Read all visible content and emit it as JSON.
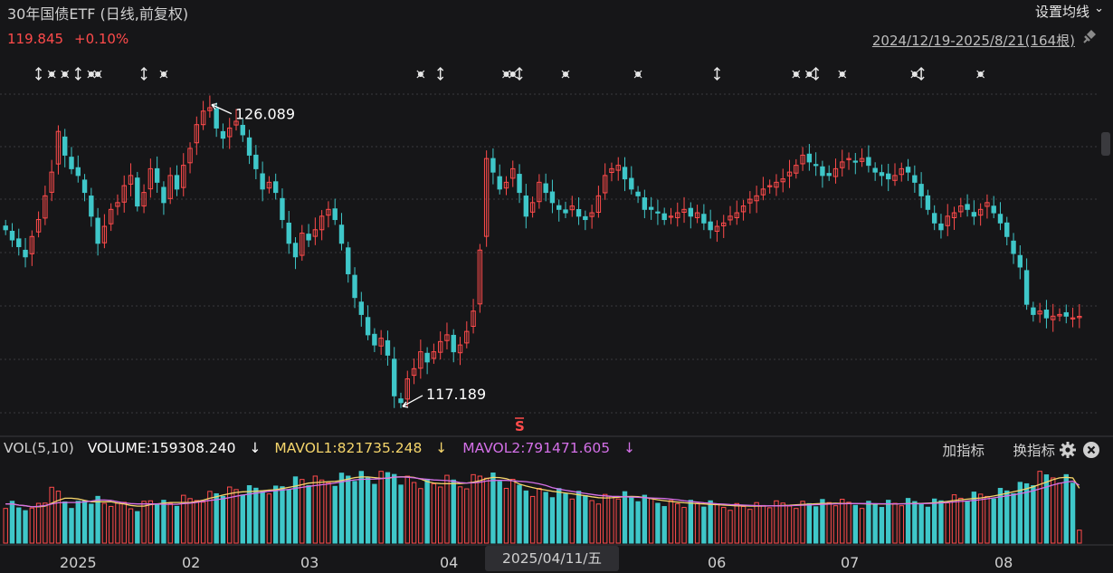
{
  "header": {
    "title": "30年国债ETF (日线,前复权)",
    "price": "119.845",
    "change": "+0.10%",
    "settings_label": "设置均线",
    "range_label": "2024/12/19-2025/8/21(164根)"
  },
  "colors": {
    "up": "#ff4b4b",
    "down": "#3fc7c9",
    "mavol1": "#f5d56b",
    "mavol2": "#d470e8",
    "background": "#161618"
  },
  "icons": {
    "settings": "chevron-down-icon",
    "range": "pin-icon",
    "indicator": "gear-icon",
    "close": "close-icon"
  },
  "price_annotations": {
    "high": "126.089",
    "low": "117.189",
    "signal": "S"
  },
  "volume_panel": {
    "name": "VOL(5,10)",
    "volume_label": "VOLUME:159308.240",
    "volume_arrow": "↓",
    "mavol1_label": "MAVOL1:821735.248",
    "mavol1_arrow": "↓",
    "mavol2_label": "MAVOL2:791471.605",
    "mavol2_arrow": "↓",
    "add_indicator": "加指标",
    "switch_indicator": "换指标"
  },
  "x_axis": {
    "months": [
      "2025",
      "02",
      "03",
      "04",
      "06",
      "07",
      "08"
    ],
    "crosshair_date": "2025/04/11/五"
  },
  "chart_data": {
    "type": "candlestick",
    "title": "30年国债ETF (日线,前复权)",
    "period": "2024/12/19-2025/8/21",
    "bar_count": 164,
    "price_range": [
      117.0,
      126.4
    ],
    "gridlines": true,
    "last_close": 119.845,
    "last_change_pct": 0.1,
    "marked_high": 126.089,
    "marked_low": 117.189,
    "volume_indicator": {
      "name": "VOL(5,10)",
      "volume": 159308.24,
      "mavol1": 821735.248,
      "mavol2": 791471.605
    },
    "closes": [
      122.4,
      122.1,
      121.9,
      121.6,
      122.2,
      122.7,
      123.4,
      124.1,
      125.3,
      124.6,
      124.2,
      124.0,
      123.5,
      122.8,
      122.0,
      122.5,
      123.0,
      123.2,
      123.7,
      124.0,
      123.1,
      123.5,
      124.2,
      123.8,
      123.2,
      124.0,
      123.6,
      124.3,
      124.8,
      125.5,
      125.9,
      126.0,
      125.4,
      125.1,
      125.4,
      125.6,
      125.2,
      124.6,
      124.2,
      123.6,
      123.8,
      123.5,
      122.7,
      122.0,
      121.6,
      122.3,
      122.1,
      122.4,
      122.8,
      123.0,
      122.7,
      122.0,
      121.1,
      120.4,
      119.9,
      119.3,
      119.0,
      119.2,
      118.7,
      117.5,
      117.3,
      118.0,
      118.3,
      118.8,
      118.5,
      118.8,
      119.1,
      119.3,
      118.8,
      119.0,
      119.4,
      120.0,
      121.8,
      124.5,
      124.1,
      123.6,
      123.8,
      124.2,
      123.5,
      122.8,
      123.2,
      123.8,
      123.5,
      123.2,
      123.0,
      122.9,
      123.1,
      122.8,
      122.7,
      122.9,
      123.4,
      124.0,
      124.2,
      124.3,
      123.9,
      123.6,
      123.4,
      123.0,
      123.0,
      122.9,
      122.7,
      122.8,
      122.9,
      123.0,
      122.8,
      122.9,
      122.6,
      122.4,
      122.5,
      122.6,
      122.8,
      122.9,
      123.1,
      123.3,
      123.4,
      123.6,
      123.7,
      123.8,
      123.9,
      124.1,
      124.3,
      124.6,
      124.4,
      124.3,
      124.0,
      124.0,
      124.2,
      124.4,
      124.5,
      124.4,
      124.5,
      124.3,
      124.1,
      124.0,
      123.9,
      124.0,
      124.2,
      124.1,
      123.8,
      123.4,
      123.0,
      122.6,
      122.4,
      122.8,
      122.9,
      123.1,
      123.0,
      122.8,
      123.0,
      123.2,
      122.9,
      122.6,
      122.2,
      121.7,
      121.3,
      120.2,
      119.9,
      120.0,
      119.8,
      119.85,
      119.9,
      119.85,
      119.8,
      119.845
    ],
    "volume_scale": [
      0.55,
      0.55,
      0.5,
      0.5,
      0.45,
      0.55,
      0.6,
      0.7,
      0.7,
      0.6,
      0.55,
      0.55,
      0.6,
      0.6,
      0.6,
      0.55,
      0.55,
      0.5,
      0.55,
      0.5,
      0.5,
      0.55,
      0.6,
      0.6,
      0.55,
      0.55,
      0.55,
      0.6,
      0.6,
      0.62,
      0.65,
      0.68,
      0.7,
      0.72,
      0.72,
      0.74,
      0.72,
      0.72,
      0.74,
      0.76,
      0.78,
      0.75,
      0.8,
      0.82,
      0.85,
      0.88,
      0.86,
      0.84,
      0.85,
      0.88,
      0.9,
      0.92,
      0.95,
      0.95,
      0.92,
      0.9,
      0.88,
      0.9,
      0.95,
      1.0,
      0.92,
      0.88,
      0.86,
      0.84,
      0.82,
      0.82,
      0.84,
      0.85,
      0.85,
      0.82,
      0.86,
      0.9,
      0.95,
      1.0,
      0.9,
      0.85,
      0.82,
      0.8,
      0.78,
      0.76,
      0.74,
      0.72,
      0.72,
      0.7,
      0.7,
      0.68,
      0.66,
      0.65,
      0.64,
      0.62,
      0.62,
      0.64,
      0.66,
      0.68,
      0.66,
      0.64,
      0.62,
      0.6,
      0.6,
      0.58,
      0.58,
      0.56,
      0.56,
      0.55,
      0.55,
      0.55,
      0.54,
      0.53,
      0.53,
      0.52,
      0.52,
      0.52,
      0.52,
      0.52,
      0.52,
      0.52,
      0.53,
      0.53,
      0.54,
      0.54,
      0.55,
      0.55,
      0.56,
      0.56,
      0.56,
      0.56,
      0.56,
      0.55,
      0.55,
      0.55,
      0.55,
      0.55,
      0.55,
      0.55,
      0.55,
      0.55,
      0.56,
      0.56,
      0.56,
      0.56,
      0.57,
      0.58,
      0.6,
      0.62,
      0.62,
      0.62,
      0.63,
      0.64,
      0.66,
      0.68,
      0.7,
      0.72,
      0.74,
      0.76,
      0.78,
      0.82,
      0.86,
      0.9,
      0.92,
      0.95,
      0.95,
      0.9,
      0.85,
      0.2
    ]
  }
}
